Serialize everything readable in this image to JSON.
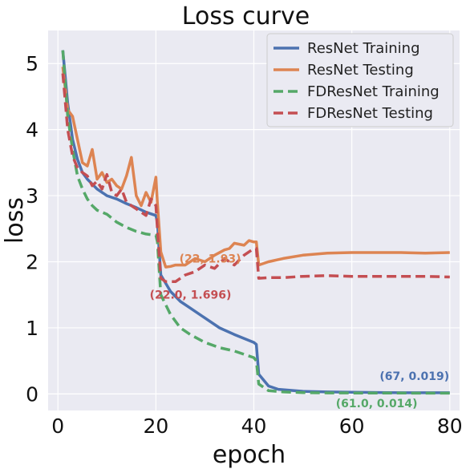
{
  "chart_data": {
    "type": "line",
    "title": "Loss curve",
    "xlabel": "epoch",
    "ylabel": "loss",
    "xlim": [
      -2,
      82
    ],
    "ylim": [
      -0.25,
      5.5
    ],
    "xticks": [
      0,
      20,
      40,
      60,
      80
    ],
    "yticks": [
      0,
      1,
      2,
      3,
      4,
      5
    ],
    "grid": true,
    "background": "#eaeaf2",
    "legend_position": "top-right",
    "series": [
      {
        "name": "ResNet Training",
        "color": "#4c72b0",
        "dash": "solid",
        "points": [
          [
            1,
            5.2
          ],
          [
            2,
            4.4
          ],
          [
            3,
            3.85
          ],
          [
            4,
            3.55
          ],
          [
            5,
            3.35
          ],
          [
            6,
            3.25
          ],
          [
            8,
            3.1
          ],
          [
            10,
            3.0
          ],
          [
            12,
            2.95
          ],
          [
            14,
            2.88
          ],
          [
            16,
            2.82
          ],
          [
            18,
            2.75
          ],
          [
            20,
            2.7
          ],
          [
            20.3,
            2.6
          ],
          [
            21,
            1.8
          ],
          [
            23,
            1.55
          ],
          [
            25,
            1.4
          ],
          [
            27,
            1.3
          ],
          [
            30,
            1.15
          ],
          [
            33,
            1.0
          ],
          [
            36,
            0.9
          ],
          [
            40,
            0.78
          ],
          [
            40.5,
            0.75
          ],
          [
            41,
            0.3
          ],
          [
            43,
            0.12
          ],
          [
            45,
            0.07
          ],
          [
            50,
            0.04
          ],
          [
            55,
            0.03
          ],
          [
            60,
            0.025
          ],
          [
            67,
            0.019
          ],
          [
            73,
            0.018
          ],
          [
            80,
            0.018
          ]
        ]
      },
      {
        "name": "ResNet Testing",
        "color": "#dd8452",
        "dash": "solid",
        "points": [
          [
            1,
            4.95
          ],
          [
            2,
            4.3
          ],
          [
            3,
            4.2
          ],
          [
            4,
            3.85
          ],
          [
            5,
            3.5
          ],
          [
            6,
            3.45
          ],
          [
            7,
            3.7
          ],
          [
            8,
            3.25
          ],
          [
            9,
            3.35
          ],
          [
            10,
            3.2
          ],
          [
            11,
            3.25
          ],
          [
            12,
            3.15
          ],
          [
            13,
            3.1
          ],
          [
            14,
            3.3
          ],
          [
            15,
            3.58
          ],
          [
            16,
            3.0
          ],
          [
            17,
            2.85
          ],
          [
            18,
            3.05
          ],
          [
            19,
            2.9
          ],
          [
            20,
            3.28
          ],
          [
            20.3,
            2.9
          ],
          [
            21,
            2.15
          ],
          [
            22,
            1.92
          ],
          [
            23,
            1.93
          ],
          [
            24,
            1.95
          ],
          [
            26,
            1.95
          ],
          [
            28,
            2.05
          ],
          [
            30,
            2.0
          ],
          [
            32,
            2.1
          ],
          [
            34,
            2.18
          ],
          [
            35,
            2.2
          ],
          [
            36,
            2.28
          ],
          [
            38,
            2.25
          ],
          [
            39,
            2.32
          ],
          [
            40,
            2.3
          ],
          [
            40.5,
            2.3
          ],
          [
            41,
            1.95
          ],
          [
            43,
            2.0
          ],
          [
            46,
            2.05
          ],
          [
            50,
            2.1
          ],
          [
            55,
            2.13
          ],
          [
            60,
            2.14
          ],
          [
            65,
            2.14
          ],
          [
            70,
            2.14
          ],
          [
            75,
            2.13
          ],
          [
            80,
            2.14
          ]
        ]
      },
      {
        "name": "FDResNet Training",
        "color": "#55a868",
        "dash": "dashed",
        "points": [
          [
            1,
            5.2
          ],
          [
            2,
            4.2
          ],
          [
            3,
            3.7
          ],
          [
            4,
            3.3
          ],
          [
            5,
            3.1
          ],
          [
            6,
            2.95
          ],
          [
            7,
            2.85
          ],
          [
            8,
            2.78
          ],
          [
            10,
            2.72
          ],
          [
            12,
            2.6
          ],
          [
            14,
            2.52
          ],
          [
            16,
            2.46
          ],
          [
            18,
            2.42
          ],
          [
            20,
            2.4
          ],
          [
            20.3,
            2.3
          ],
          [
            21,
            1.5
          ],
          [
            23,
            1.2
          ],
          [
            25,
            1.0
          ],
          [
            27,
            0.9
          ],
          [
            30,
            0.78
          ],
          [
            33,
            0.7
          ],
          [
            36,
            0.65
          ],
          [
            40,
            0.55
          ],
          [
            40.5,
            0.5
          ],
          [
            41,
            0.15
          ],
          [
            43,
            0.05
          ],
          [
            46,
            0.03
          ],
          [
            50,
            0.02
          ],
          [
            55,
            0.016
          ],
          [
            61,
            0.014
          ],
          [
            70,
            0.013
          ],
          [
            80,
            0.012
          ]
        ]
      },
      {
        "name": "FDResNet Testing",
        "color": "#c44e52",
        "dash": "dashed",
        "points": [
          [
            1,
            4.85
          ],
          [
            2,
            4.0
          ],
          [
            3,
            3.6
          ],
          [
            4,
            3.42
          ],
          [
            5,
            3.35
          ],
          [
            6,
            3.3
          ],
          [
            7,
            3.15
          ],
          [
            8,
            3.22
          ],
          [
            9,
            3.1
          ],
          [
            10,
            3.32
          ],
          [
            11,
            3.05
          ],
          [
            12,
            3.0
          ],
          [
            13,
            3.1
          ],
          [
            14,
            2.9
          ],
          [
            15,
            2.85
          ],
          [
            16,
            2.8
          ],
          [
            17,
            2.75
          ],
          [
            18,
            2.7
          ],
          [
            19,
            2.95
          ],
          [
            20,
            2.85
          ],
          [
            20.3,
            2.5
          ],
          [
            21,
            1.75
          ],
          [
            22,
            1.7
          ],
          [
            24,
            1.7
          ],
          [
            26,
            1.8
          ],
          [
            28,
            1.85
          ],
          [
            30,
            1.95
          ],
          [
            32,
            1.9
          ],
          [
            34,
            2.05
          ],
          [
            35,
            2.0
          ],
          [
            36,
            1.95
          ],
          [
            38,
            2.1
          ],
          [
            40,
            2.2
          ],
          [
            40.5,
            2.2
          ],
          [
            41,
            1.75
          ],
          [
            43,
            1.76
          ],
          [
            46,
            1.76
          ],
          [
            50,
            1.78
          ],
          [
            55,
            1.79
          ],
          [
            60,
            1.78
          ],
          [
            65,
            1.78
          ],
          [
            70,
            1.78
          ],
          [
            75,
            1.78
          ],
          [
            80,
            1.77
          ]
        ]
      }
    ],
    "annotations": [
      {
        "text": "(67, 0.019)",
        "x": 67,
        "y": 0.019,
        "color": "#4c72b0"
      },
      {
        "text": "(22, 1.93)",
        "x": 22,
        "y": 1.93,
        "color": "#dd8452"
      },
      {
        "text": "(22.0, 1.696)",
        "x": 22,
        "y": 1.696,
        "color": "#c44e52"
      },
      {
        "text": "(61.0, 0.014)",
        "x": 61,
        "y": 0.014,
        "color": "#55a868"
      }
    ]
  }
}
